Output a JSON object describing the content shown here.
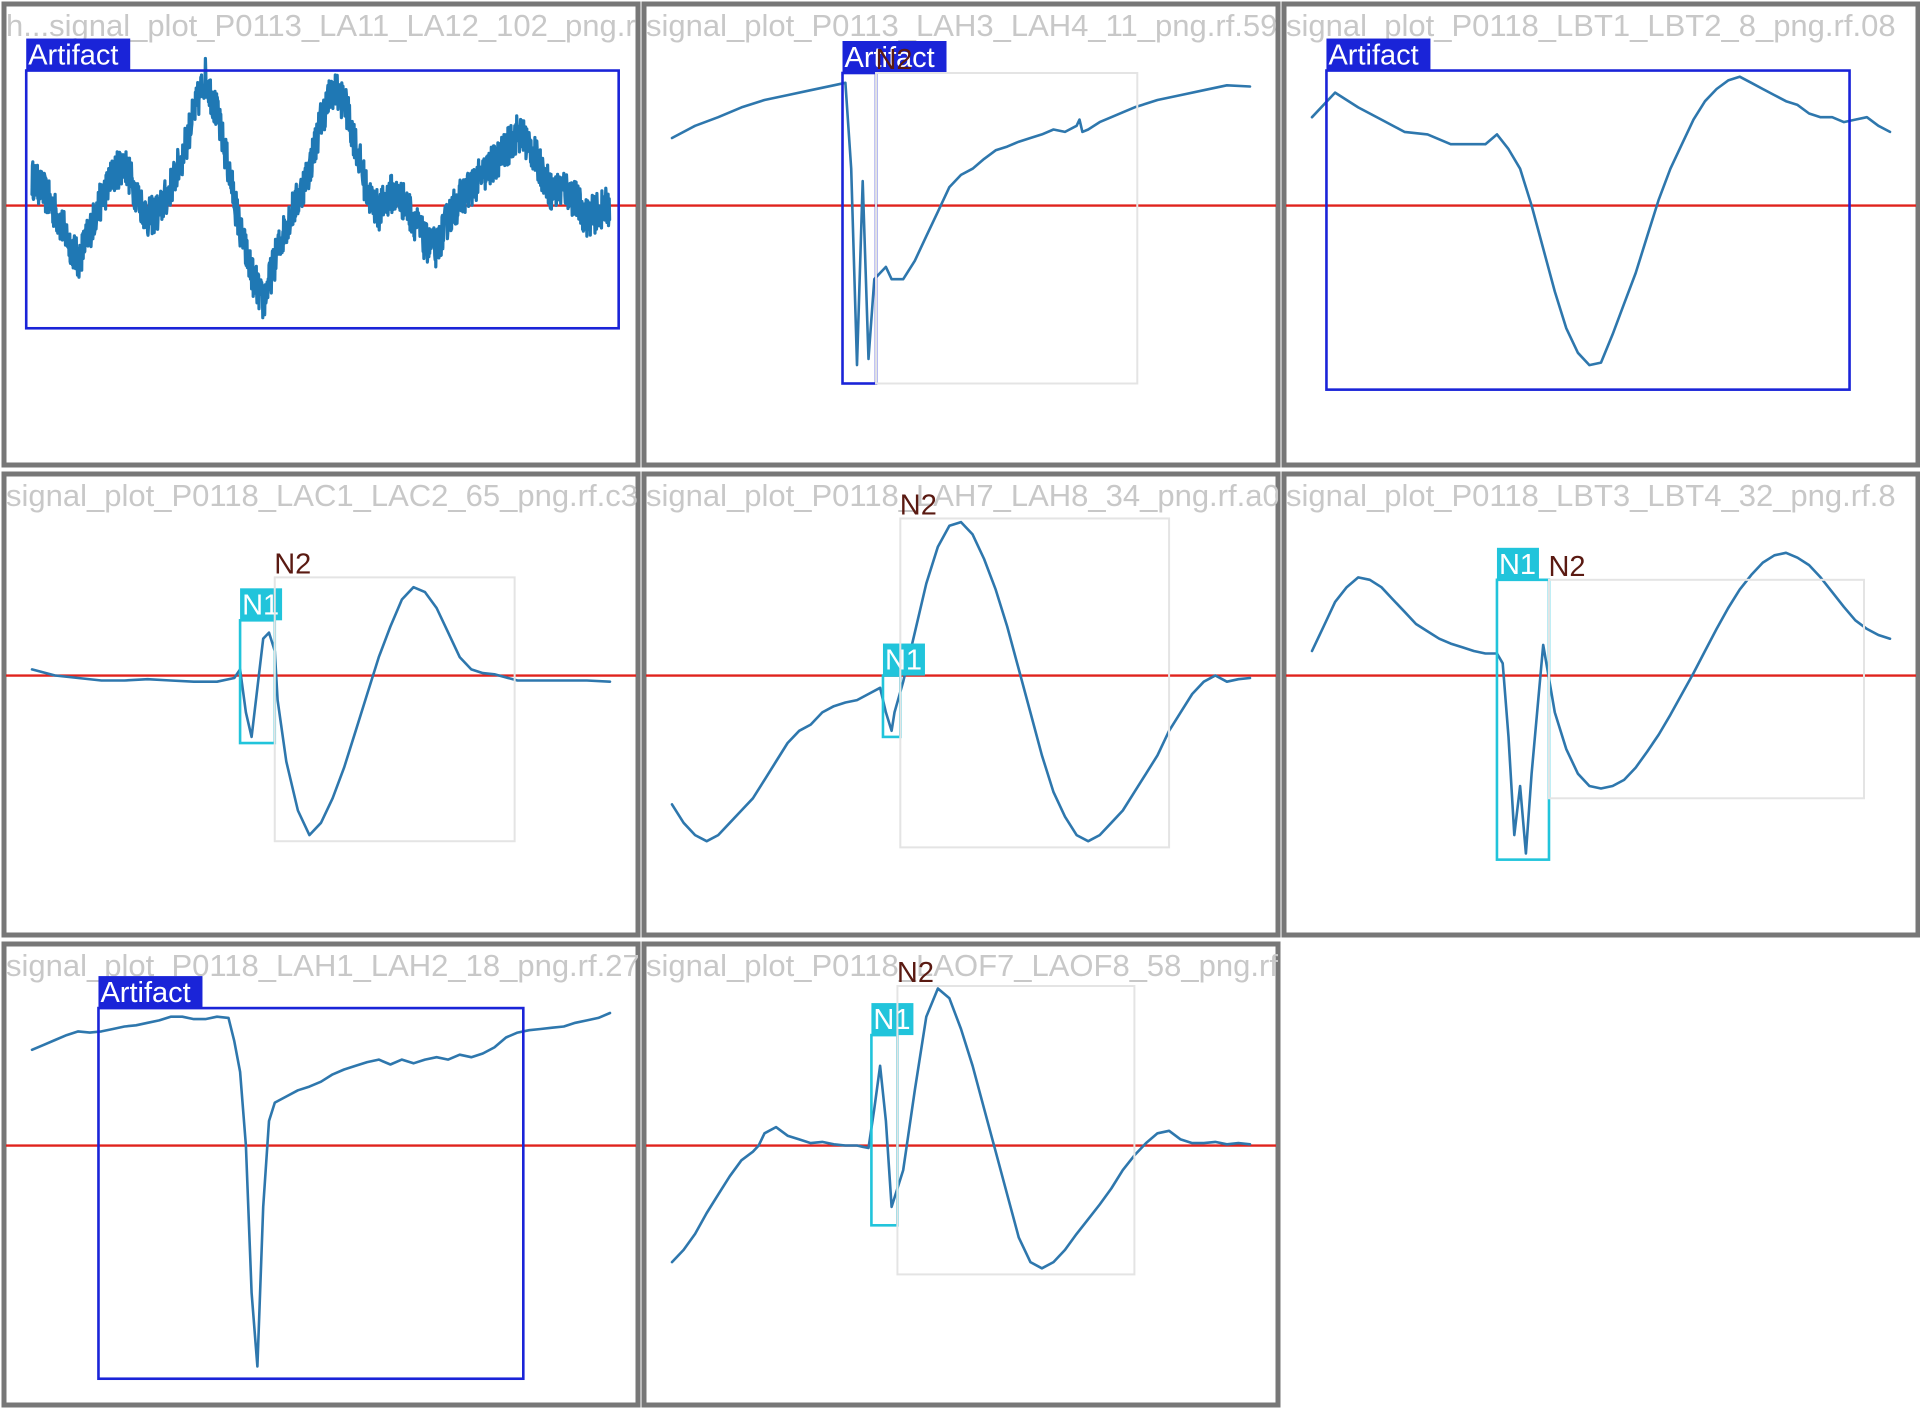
{
  "colors": {
    "Artifact": "#1a24d8",
    "N1": "#21c4db",
    "N2_text": "#5a1a12",
    "signal": "#2e77ad",
    "baseline": "#e0231d",
    "frame": "#777777",
    "title": "#c8c8c8"
  },
  "chart_data": [
    {
      "type": "line",
      "title": "h...signal_plot_P0113_LA11_LA12_102_png.r",
      "noisy": true,
      "x": [
        0,
        2,
        4,
        6,
        8,
        10,
        12,
        14,
        16,
        18,
        20,
        22,
        24,
        26,
        28,
        30,
        32,
        34,
        36,
        38,
        40,
        42,
        44,
        46,
        48,
        50,
        52,
        54,
        56,
        58,
        60,
        62,
        64,
        66,
        68,
        70,
        72,
        74,
        76,
        78,
        80,
        82,
        84,
        86,
        88,
        90,
        92,
        94,
        96,
        98,
        100
      ],
      "y": [
        0.22,
        0.12,
        -0.05,
        -0.25,
        -0.45,
        -0.2,
        0.05,
        0.25,
        0.35,
        0.1,
        -0.1,
        -0.05,
        0.15,
        0.4,
        0.75,
        1.05,
        0.75,
        0.3,
        -0.2,
        -0.55,
        -0.8,
        -0.45,
        -0.15,
        0.05,
        0.3,
        0.7,
        0.95,
        0.85,
        0.5,
        0.1,
        -0.05,
        0.1,
        0.05,
        -0.1,
        -0.3,
        -0.35,
        -0.1,
        0.05,
        0.15,
        0.25,
        0.35,
        0.45,
        0.6,
        0.5,
        0.3,
        0.1,
        0.15,
        0.05,
        -0.1,
        -0.05,
        0.0
      ],
      "annotations": [
        {
          "label": "Artifact",
          "class": "Artifact",
          "x0": -1,
          "x1": 101.5,
          "y0": -1.0,
          "y1": 1.1
        }
      ]
    },
    {
      "type": "line",
      "title": "signal_plot_P0113_LAH3_LAH4_11_png.rf.59",
      "x": [
        0,
        4,
        8,
        12,
        16,
        20,
        24,
        28,
        30,
        31,
        32,
        33,
        34,
        35,
        36,
        37,
        38,
        40,
        42,
        44,
        46,
        48,
        50,
        52,
        54,
        56,
        58,
        60,
        62,
        64,
        66,
        68,
        70,
        70.5,
        71,
        72,
        74,
        76,
        78,
        80,
        84,
        88,
        92,
        96,
        100
      ],
      "y": [
        0.55,
        0.65,
        0.72,
        0.8,
        0.86,
        0.9,
        0.94,
        0.98,
        1.0,
        0.3,
        -1.3,
        0.2,
        -1.25,
        -0.6,
        -0.55,
        -0.5,
        -0.6,
        -0.6,
        -0.45,
        -0.25,
        -0.05,
        0.15,
        0.25,
        0.3,
        0.38,
        0.45,
        0.48,
        0.52,
        0.55,
        0.58,
        0.62,
        0.6,
        0.65,
        0.7,
        0.6,
        0.62,
        0.68,
        0.72,
        0.76,
        0.8,
        0.86,
        0.9,
        0.94,
        0.98,
        0.97
      ],
      "annotations": [
        {
          "label": "Artifact",
          "class": "Artifact",
          "x0": 29.5,
          "x1": 35.3,
          "y0": -1.45,
          "y1": 1.08
        },
        {
          "label": "N2",
          "class": "N2",
          "x0": 35.3,
          "x1": 80.5,
          "y0": -1.45,
          "y1": 1.08
        }
      ]
    },
    {
      "type": "line",
      "title": "signal_plot_P0118_LBT1_LBT2_8_png.rf.08",
      "x": [
        0,
        4,
        8,
        12,
        16,
        20,
        24,
        28,
        30,
        32,
        34,
        36,
        38,
        40,
        42,
        44,
        46,
        48,
        50,
        52,
        54,
        56,
        58,
        60,
        62,
        64,
        66,
        68,
        70,
        72,
        74,
        76,
        78,
        80,
        82,
        84,
        86,
        88,
        90,
        92,
        94,
        96,
        98,
        100
      ],
      "y": [
        0.72,
        0.92,
        0.8,
        0.7,
        0.6,
        0.58,
        0.5,
        0.5,
        0.5,
        0.58,
        0.46,
        0.3,
        0.0,
        -0.35,
        -0.7,
        -1.0,
        -1.2,
        -1.3,
        -1.28,
        -1.05,
        -0.8,
        -0.55,
        -0.25,
        0.05,
        0.3,
        0.5,
        0.7,
        0.85,
        0.95,
        1.02,
        1.05,
        1.0,
        0.95,
        0.9,
        0.85,
        0.82,
        0.75,
        0.72,
        0.72,
        0.68,
        0.7,
        0.72,
        0.65,
        0.6
      ],
      "annotations": [
        {
          "label": "Artifact",
          "class": "Artifact",
          "x0": 2.5,
          "x1": 93.0,
          "y0": -1.5,
          "y1": 1.1
        }
      ]
    },
    {
      "type": "line",
      "title": "signal_plot_P0118_LAC1_LAC2_65_png.rf.c3",
      "x": [
        0,
        4,
        8,
        12,
        16,
        20,
        24,
        28,
        32,
        35,
        36,
        37,
        38,
        39,
        40,
        41,
        42,
        42.5,
        44,
        46,
        48,
        50,
        52,
        54,
        56,
        58,
        60,
        62,
        64,
        66,
        68,
        70,
        72,
        74,
        76,
        78,
        80,
        84,
        88,
        92,
        96,
        100
      ],
      "y": [
        0.05,
        0.0,
        -0.02,
        -0.04,
        -0.04,
        -0.03,
        -0.04,
        -0.05,
        -0.05,
        -0.02,
        0.05,
        -0.3,
        -0.5,
        -0.1,
        0.3,
        0.35,
        0.2,
        -0.2,
        -0.7,
        -1.1,
        -1.3,
        -1.2,
        -1.0,
        -0.75,
        -0.45,
        -0.15,
        0.15,
        0.4,
        0.62,
        0.72,
        0.68,
        0.55,
        0.35,
        0.15,
        0.05,
        0.02,
        0.01,
        -0.04,
        -0.04,
        -0.04,
        -0.04,
        -0.05
      ],
      "annotations": [
        {
          "label": "N1",
          "class": "N1",
          "x0": 36.0,
          "x1": 42.0,
          "y0": -0.55,
          "y1": 0.45
        },
        {
          "label": "N2",
          "class": "N2",
          "x0": 42.0,
          "x1": 83.5,
          "y0": -1.35,
          "y1": 0.8
        }
      ]
    },
    {
      "type": "line",
      "title": "signal_plot_P0118_LAH7_LAH8_34_png.rf.a0",
      "x": [
        0,
        2,
        4,
        6,
        8,
        10,
        12,
        14,
        16,
        18,
        20,
        22,
        24,
        26,
        28,
        30,
        32,
        34,
        36,
        37,
        38,
        38.5,
        40,
        42,
        44,
        46,
        48,
        50,
        52,
        54,
        56,
        58,
        60,
        62,
        64,
        66,
        68,
        70,
        72,
        74,
        76,
        78,
        80,
        82,
        84,
        86,
        88,
        90,
        92,
        94,
        96,
        98,
        100
      ],
      "y": [
        -1.05,
        -1.2,
        -1.3,
        -1.35,
        -1.3,
        -1.2,
        -1.1,
        -1.0,
        -0.85,
        -0.7,
        -0.55,
        -0.45,
        -0.4,
        -0.3,
        -0.25,
        -0.22,
        -0.2,
        -0.15,
        -0.1,
        -0.3,
        -0.45,
        -0.3,
        -0.05,
        0.35,
        0.75,
        1.05,
        1.22,
        1.25,
        1.15,
        0.95,
        0.7,
        0.4,
        0.05,
        -0.3,
        -0.65,
        -0.95,
        -1.15,
        -1.3,
        -1.35,
        -1.3,
        -1.2,
        -1.1,
        -0.95,
        -0.8,
        -0.65,
        -0.45,
        -0.3,
        -0.15,
        -0.05,
        0.0,
        -0.05,
        -0.03,
        -0.02
      ],
      "annotations": [
        {
          "label": "N1",
          "class": "N1",
          "x0": 36.5,
          "x1": 39.5,
          "y0": -0.5,
          "y1": 0.0
        },
        {
          "label": "N2",
          "class": "N2",
          "x0": 39.5,
          "x1": 86.0,
          "y0": -1.4,
          "y1": 1.28
        }
      ]
    },
    {
      "type": "line",
      "title": "signal_plot_P0118_LBT3_LBT4_32_png.rf.8",
      "x": [
        0,
        2,
        4,
        6,
        8,
        10,
        12,
        14,
        16,
        18,
        20,
        22,
        24,
        26,
        28,
        30,
        32,
        33,
        34,
        35,
        36,
        37,
        38,
        40,
        42,
        44,
        46,
        48,
        50,
        52,
        54,
        56,
        58,
        60,
        62,
        64,
        66,
        68,
        70,
        72,
        74,
        76,
        78,
        80,
        82,
        84,
        86,
        88,
        90,
        92,
        94,
        96,
        98,
        100
      ],
      "y": [
        0.2,
        0.4,
        0.6,
        0.72,
        0.8,
        0.78,
        0.72,
        0.62,
        0.52,
        0.42,
        0.36,
        0.3,
        0.26,
        0.23,
        0.2,
        0.18,
        0.18,
        0.1,
        -0.5,
        -1.3,
        -0.9,
        -1.45,
        -0.8,
        0.25,
        -0.3,
        -0.6,
        -0.8,
        -0.9,
        -0.92,
        -0.9,
        -0.85,
        -0.75,
        -0.62,
        -0.48,
        -0.32,
        -0.15,
        0.02,
        0.2,
        0.38,
        0.55,
        0.7,
        0.82,
        0.92,
        0.98,
        1.0,
        0.96,
        0.9,
        0.8,
        0.68,
        0.56,
        0.45,
        0.38,
        0.33,
        0.3
      ],
      "annotations": [
        {
          "label": "N1",
          "class": "N1",
          "x0": 32.0,
          "x1": 41.0,
          "y0": -1.5,
          "y1": 0.78
        },
        {
          "label": "N2",
          "class": "N2",
          "x0": 41.0,
          "x1": 95.5,
          "y0": -1.0,
          "y1": 0.78
        }
      ]
    },
    {
      "type": "line",
      "title": "signal_plot_P0118_LAH1_LAH2_18_png.rf.27",
      "x": [
        0,
        2,
        4,
        6,
        8,
        10,
        12,
        14,
        16,
        18,
        20,
        22,
        24,
        26,
        28,
        30,
        32,
        34,
        35,
        36,
        37,
        38,
        39,
        40,
        41,
        42,
        44,
        46,
        48,
        50,
        52,
        54,
        56,
        58,
        60,
        62,
        64,
        66,
        68,
        70,
        72,
        74,
        76,
        78,
        80,
        82,
        84,
        86,
        88,
        90,
        92,
        94,
        96,
        98,
        100
      ],
      "y": [
        0.78,
        0.82,
        0.86,
        0.9,
        0.93,
        0.92,
        0.93,
        0.95,
        0.97,
        0.98,
        1.0,
        1.02,
        1.05,
        1.05,
        1.03,
        1.03,
        1.05,
        1.04,
        0.85,
        0.6,
        0.0,
        -1.2,
        -1.8,
        -0.5,
        0.2,
        0.35,
        0.4,
        0.45,
        0.48,
        0.52,
        0.58,
        0.62,
        0.65,
        0.68,
        0.7,
        0.66,
        0.7,
        0.67,
        0.7,
        0.72,
        0.7,
        0.74,
        0.72,
        0.75,
        0.8,
        0.88,
        0.92,
        0.94,
        0.95,
        0.96,
        0.97,
        1.0,
        1.02,
        1.04,
        1.08
      ],
      "annotations": [
        {
          "label": "Artifact",
          "class": "Artifact",
          "x0": 11.5,
          "x1": 85.0,
          "y0": -1.9,
          "y1": 1.12
        }
      ]
    },
    {
      "type": "line",
      "title": "signal_plot_P0118_LAOF7_LAOF8_58_png.rf.",
      "x": [
        0,
        2,
        4,
        6,
        8,
        10,
        12,
        14,
        15,
        16,
        18,
        20,
        22,
        24,
        26,
        28,
        30,
        32,
        33,
        34,
        35,
        36,
        37,
        38,
        40,
        42,
        44,
        46,
        48,
        50,
        52,
        54,
        56,
        58,
        60,
        62,
        64,
        66,
        68,
        70,
        72,
        74,
        76,
        78,
        80,
        82,
        84,
        86,
        88,
        90,
        92,
        94,
        96,
        98,
        100
      ],
      "y": [
        -0.95,
        -0.85,
        -0.72,
        -0.55,
        -0.4,
        -0.25,
        -0.12,
        -0.05,
        -0.0,
        0.1,
        0.15,
        0.08,
        0.05,
        0.02,
        0.03,
        0.01,
        0.0,
        0.0,
        -0.01,
        -0.02,
        0.3,
        0.65,
        0.2,
        -0.5,
        -0.2,
        0.45,
        1.05,
        1.28,
        1.2,
        0.95,
        0.65,
        0.3,
        -0.05,
        -0.4,
        -0.75,
        -0.95,
        -1.0,
        -0.95,
        -0.85,
        -0.72,
        -0.6,
        -0.48,
        -0.35,
        -0.2,
        -0.08,
        0.02,
        0.1,
        0.12,
        0.05,
        0.02,
        0.02,
        0.03,
        0.01,
        0.02,
        0.01
      ],
      "annotations": [
        {
          "label": "N1",
          "class": "N1",
          "x0": 34.5,
          "x1": 39.0,
          "y0": -0.65,
          "y1": 0.9
        },
        {
          "label": "N2",
          "class": "N2",
          "x0": 39.0,
          "x1": 80.0,
          "y0": -1.05,
          "y1": 1.3
        }
      ]
    }
  ]
}
